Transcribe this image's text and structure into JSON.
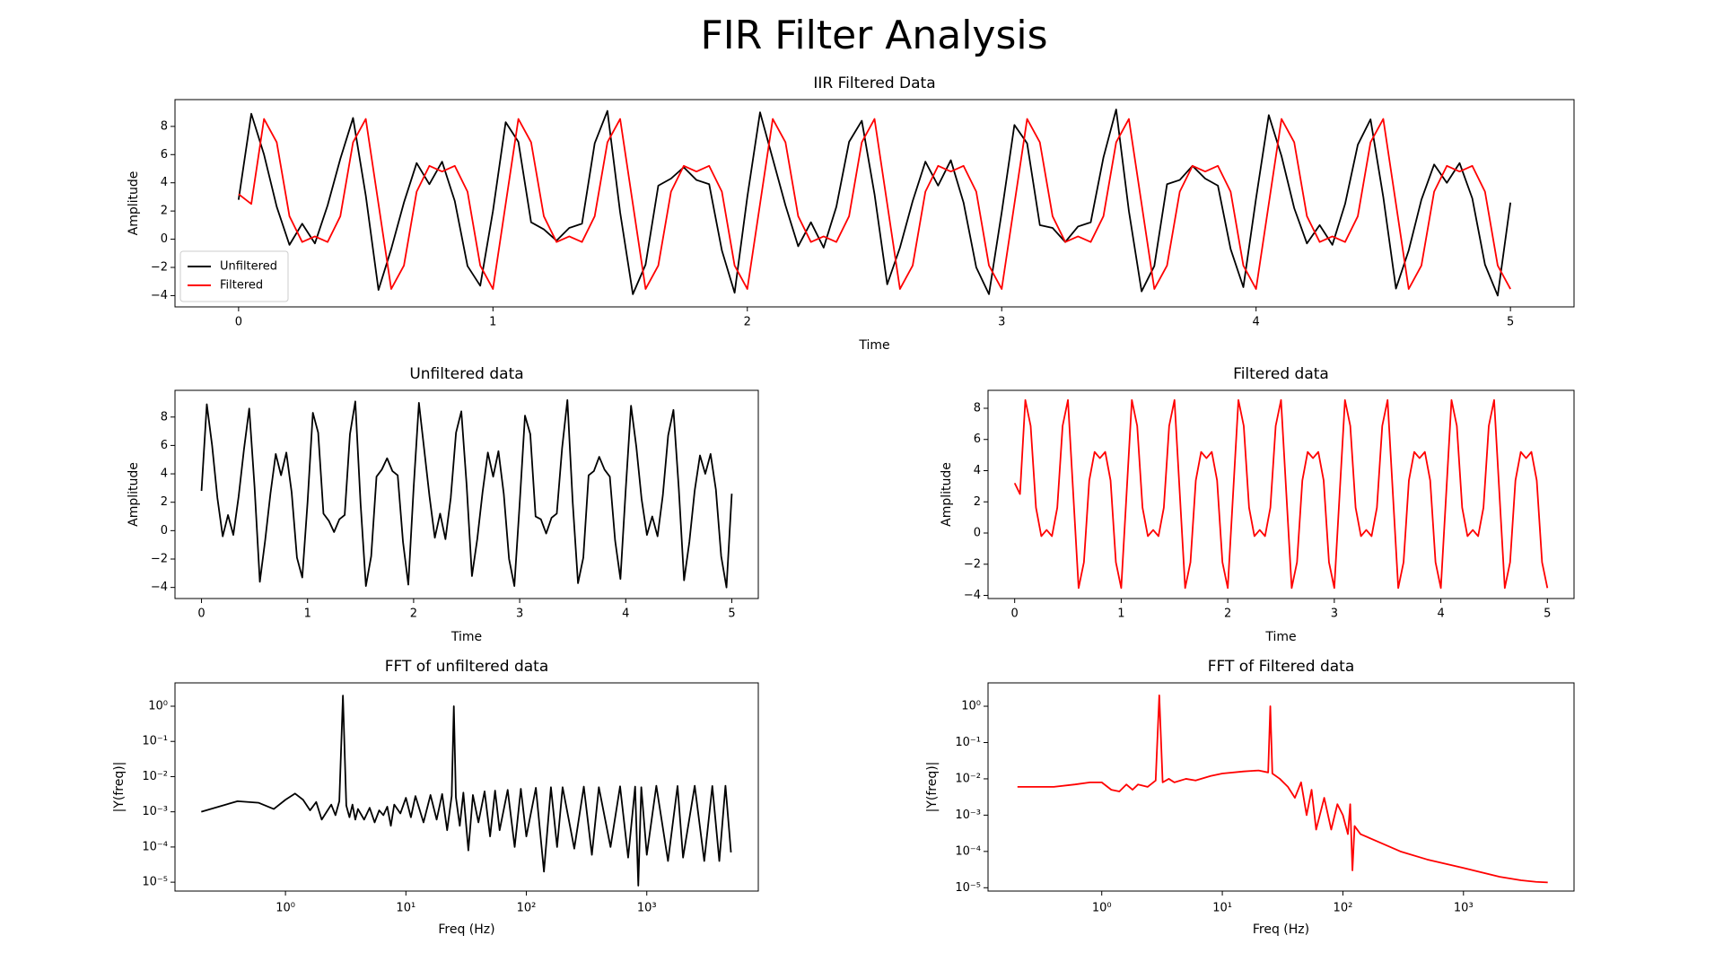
{
  "figure_title": "FIR Filter Analysis",
  "chart_data": [
    {
      "type": "line",
      "title": "IIR Filtered Data",
      "x_label": "Time",
      "y_label": "Amplitude",
      "legend": "lower left",
      "xlim": [
        -0.25,
        5.25
      ],
      "ylim": [
        -4.8,
        9.9
      ],
      "xticks": [
        0,
        1,
        2,
        3,
        4,
        5
      ],
      "yticks": [
        {
          "value": -4,
          "label": "−4"
        },
        {
          "value": -2,
          "label": "−2"
        },
        0,
        2,
        4,
        6,
        8
      ],
      "x": [
        0,
        0.05,
        0.1,
        0.15,
        0.2,
        0.25,
        0.3,
        0.35,
        0.4,
        0.45,
        0.5,
        0.55,
        0.6,
        0.65,
        0.7,
        0.75,
        0.8,
        0.85,
        0.9,
        0.95,
        1,
        1.05,
        1.1,
        1.15,
        1.2,
        1.25,
        1.3,
        1.35,
        1.4,
        1.45,
        1.5,
        1.55,
        1.6,
        1.65,
        1.7,
        1.75,
        1.8,
        1.85,
        1.9,
        1.95,
        2,
        2.05,
        2.1,
        2.15,
        2.2,
        2.25,
        2.3,
        2.35,
        2.4,
        2.45,
        2.5,
        2.55,
        2.6,
        2.65,
        2.7,
        2.75,
        2.8,
        2.85,
        2.9,
        2.95,
        3,
        3.05,
        3.1,
        3.15,
        3.2,
        3.25,
        3.3,
        3.35,
        3.4,
        3.45,
        3.5,
        3.55,
        3.6,
        3.65,
        3.7,
        3.75,
        3.8,
        3.85,
        3.9,
        3.95,
        4,
        4.05,
        4.1,
        4.15,
        4.2,
        4.25,
        4.3,
        4.35,
        4.4,
        4.45,
        4.5,
        4.55,
        4.6,
        4.65,
        4.7,
        4.75,
        4.8,
        4.85,
        4.9,
        4.95,
        5
      ],
      "series": [
        {
          "name": "Unfiltered",
          "color": "#000000",
          "values": [
            2.8,
            8.9,
            6.0,
            2.3,
            -0.4,
            1.1,
            -0.3,
            2.4,
            5.7,
            8.6,
            3.1,
            -3.6,
            -0.7,
            2.6,
            5.4,
            3.9,
            5.5,
            2.7,
            -1.9,
            -3.3,
            2.0,
            8.3,
            6.9,
            1.2,
            0.7,
            -0.1,
            0.8,
            1.1,
            6.8,
            9.1,
            1.9,
            -3.9,
            -1.8,
            3.8,
            4.3,
            5.1,
            4.2,
            3.9,
            -0.8,
            -3.8,
            3.0,
            9.0,
            5.7,
            2.4,
            -0.5,
            1.2,
            -0.6,
            2.3,
            6.9,
            8.4,
            3.2,
            -3.2,
            -0.6,
            2.7,
            5.5,
            3.8,
            5.6,
            2.6,
            -2.0,
            -3.9,
            1.9,
            8.1,
            6.8,
            1.0,
            0.8,
            -0.2,
            0.9,
            1.2,
            5.8,
            9.2,
            2.0,
            -3.7,
            -1.9,
            3.9,
            4.2,
            5.2,
            4.3,
            3.8,
            -0.7,
            -3.4,
            2.9,
            8.8,
            5.9,
            2.2,
            -0.3,
            1.0,
            -0.4,
            2.5,
            6.7,
            8.5,
            3.0,
            -3.5,
            -0.8,
            2.8,
            5.3,
            4.0,
            5.4,
            2.9,
            -1.8,
            -4.0,
            2.6
          ]
        },
        {
          "name": "Filtered",
          "color": "#ff0000",
          "values": [
            3.2,
            2.5,
            8.53,
            6.87,
            1.63,
            -0.2,
            0.2,
            -0.2,
            1.63,
            6.87,
            8.53,
            2.5,
            -3.53,
            -1.87,
            3.37,
            5.2,
            4.8,
            5.2,
            3.37,
            -1.87,
            -3.53,
            2.5,
            8.53,
            6.87,
            1.63,
            -0.2,
            0.2,
            -0.2,
            1.63,
            6.87,
            8.53,
            2.5,
            -3.53,
            -1.87,
            3.37,
            5.2,
            4.8,
            5.2,
            3.37,
            -1.87,
            -3.53,
            2.5,
            8.53,
            6.87,
            1.63,
            -0.2,
            0.2,
            -0.2,
            1.63,
            6.87,
            8.53,
            2.5,
            -3.53,
            -1.87,
            3.37,
            5.2,
            4.8,
            5.2,
            3.37,
            -1.87,
            -3.53,
            2.5,
            8.53,
            6.87,
            1.63,
            -0.2,
            0.2,
            -0.2,
            1.63,
            6.87,
            8.53,
            2.5,
            -3.53,
            -1.87,
            3.37,
            5.2,
            4.8,
            5.2,
            3.37,
            -1.87,
            -3.53,
            2.5,
            8.53,
            6.87,
            1.63,
            -0.2,
            0.2,
            -0.2,
            1.63,
            6.87,
            8.53,
            2.5,
            -3.53,
            -1.87,
            3.37,
            5.2,
            4.8,
            5.2,
            3.37,
            -1.87,
            -3.53
          ]
        }
      ]
    },
    {
      "type": "line",
      "title": "Unfiltered data",
      "x_label": "Time",
      "y_label": "Amplitude",
      "xlim": [
        -0.25,
        5.25
      ],
      "ylim": [
        -4.78,
        9.88
      ],
      "xticks": [
        0,
        1,
        2,
        3,
        4,
        5
      ],
      "yticks": [
        {
          "value": -4,
          "label": "−4"
        },
        {
          "value": -2,
          "label": "−2"
        },
        0,
        2,
        4,
        6,
        8
      ],
      "x": [
        0,
        0.05,
        0.1,
        0.15,
        0.2,
        0.25,
        0.3,
        0.35,
        0.4,
        0.45,
        0.5,
        0.55,
        0.6,
        0.65,
        0.7,
        0.75,
        0.8,
        0.85,
        0.9,
        0.95,
        1,
        1.05,
        1.1,
        1.15,
        1.2,
        1.25,
        1.3,
        1.35,
        1.4,
        1.45,
        1.5,
        1.55,
        1.6,
        1.65,
        1.7,
        1.75,
        1.8,
        1.85,
        1.9,
        1.95,
        2,
        2.05,
        2.1,
        2.15,
        2.2,
        2.25,
        2.3,
        2.35,
        2.4,
        2.45,
        2.5,
        2.55,
        2.6,
        2.65,
        2.7,
        2.75,
        2.8,
        2.85,
        2.9,
        2.95,
        3,
        3.05,
        3.1,
        3.15,
        3.2,
        3.25,
        3.3,
        3.35,
        3.4,
        3.45,
        3.5,
        3.55,
        3.6,
        3.65,
        3.7,
        3.75,
        3.8,
        3.85,
        3.9,
        3.95,
        4,
        4.05,
        4.1,
        4.15,
        4.2,
        4.25,
        4.3,
        4.35,
        4.4,
        4.45,
        4.5,
        4.55,
        4.6,
        4.65,
        4.7,
        4.75,
        4.8,
        4.85,
        4.9,
        4.95,
        5
      ],
      "series": [
        {
          "color": "#000000",
          "values": [
            2.8,
            8.9,
            6.0,
            2.3,
            -0.4,
            1.1,
            -0.3,
            2.4,
            5.7,
            8.6,
            3.1,
            -3.6,
            -0.7,
            2.6,
            5.4,
            3.9,
            5.5,
            2.7,
            -1.9,
            -3.3,
            2.0,
            8.3,
            6.9,
            1.2,
            0.7,
            -0.1,
            0.8,
            1.1,
            6.8,
            9.1,
            1.9,
            -3.9,
            -1.8,
            3.8,
            4.3,
            5.1,
            4.2,
            3.9,
            -0.8,
            -3.8,
            3.0,
            9.0,
            5.7,
            2.4,
            -0.5,
            1.2,
            -0.6,
            2.3,
            6.9,
            8.4,
            3.2,
            -3.2,
            -0.6,
            2.7,
            5.5,
            3.8,
            5.6,
            2.6,
            -2.0,
            -3.9,
            1.9,
            8.1,
            6.8,
            1.0,
            0.8,
            -0.2,
            0.9,
            1.2,
            5.8,
            9.2,
            2.0,
            -3.7,
            -1.9,
            3.9,
            4.2,
            5.2,
            4.3,
            3.8,
            -0.7,
            -3.4,
            2.9,
            8.8,
            5.9,
            2.2,
            -0.3,
            1.0,
            -0.4,
            2.5,
            6.7,
            8.5,
            3.0,
            -3.5,
            -0.8,
            2.8,
            5.3,
            4.0,
            5.4,
            2.9,
            -1.8,
            -4.0,
            2.6
          ]
        }
      ]
    },
    {
      "type": "line",
      "title": "Filtered data",
      "x_label": "Time",
      "y_label": "Amplitude",
      "xlim": [
        -0.25,
        5.25
      ],
      "ylim": [
        -4.2,
        9.15
      ],
      "xticks": [
        0,
        1,
        2,
        3,
        4,
        5
      ],
      "yticks": [
        {
          "value": -4,
          "label": "−4"
        },
        {
          "value": -2,
          "label": "−2"
        },
        0,
        2,
        4,
        6,
        8
      ],
      "x": [
        0,
        0.05,
        0.1,
        0.15,
        0.2,
        0.25,
        0.3,
        0.35,
        0.4,
        0.45,
        0.5,
        0.55,
        0.6,
        0.65,
        0.7,
        0.75,
        0.8,
        0.85,
        0.9,
        0.95,
        1,
        1.05,
        1.1,
        1.15,
        1.2,
        1.25,
        1.3,
        1.35,
        1.4,
        1.45,
        1.5,
        1.55,
        1.6,
        1.65,
        1.7,
        1.75,
        1.8,
        1.85,
        1.9,
        1.95,
        2,
        2.05,
        2.1,
        2.15,
        2.2,
        2.25,
        2.3,
        2.35,
        2.4,
        2.45,
        2.5,
        2.55,
        2.6,
        2.65,
        2.7,
        2.75,
        2.8,
        2.85,
        2.9,
        2.95,
        3,
        3.05,
        3.1,
        3.15,
        3.2,
        3.25,
        3.3,
        3.35,
        3.4,
        3.45,
        3.5,
        3.55,
        3.6,
        3.65,
        3.7,
        3.75,
        3.8,
        3.85,
        3.9,
        3.95,
        4,
        4.05,
        4.1,
        4.15,
        4.2,
        4.25,
        4.3,
        4.35,
        4.4,
        4.45,
        4.5,
        4.55,
        4.6,
        4.65,
        4.7,
        4.75,
        4.8,
        4.85,
        4.9,
        4.95,
        5
      ],
      "series": [
        {
          "color": "#ff0000",
          "values": [
            3.2,
            2.5,
            8.53,
            6.87,
            1.63,
            -0.2,
            0.2,
            -0.2,
            1.63,
            6.87,
            8.53,
            2.5,
            -3.53,
            -1.87,
            3.37,
            5.2,
            4.8,
            5.2,
            3.37,
            -1.87,
            -3.53,
            2.5,
            8.53,
            6.87,
            1.63,
            -0.2,
            0.2,
            -0.2,
            1.63,
            6.87,
            8.53,
            2.5,
            -3.53,
            -1.87,
            3.37,
            5.2,
            4.8,
            5.2,
            3.37,
            -1.87,
            -3.53,
            2.5,
            8.53,
            6.87,
            1.63,
            -0.2,
            0.2,
            -0.2,
            1.63,
            6.87,
            8.53,
            2.5,
            -3.53,
            -1.87,
            3.37,
            5.2,
            4.8,
            5.2,
            3.37,
            -1.87,
            -3.53,
            2.5,
            8.53,
            6.87,
            1.63,
            -0.2,
            0.2,
            -0.2,
            1.63,
            6.87,
            8.53,
            2.5,
            -3.53,
            -1.87,
            3.37,
            5.2,
            4.8,
            5.2,
            3.37,
            -1.87,
            -3.53,
            2.5,
            8.53,
            6.87,
            1.63,
            -0.2,
            0.2,
            -0.2,
            1.63,
            6.87,
            8.53,
            2.5,
            -3.53,
            -1.87,
            3.37,
            5.2,
            4.8,
            5.2,
            3.37,
            -1.87,
            -3.53
          ]
        }
      ]
    },
    {
      "type": "line",
      "title": "FFT of unfiltered data",
      "x_label": "Freq (Hz)",
      "y_label": "|Y(freq)|",
      "xscale": "log",
      "yscale": "log",
      "xlim": [
        0.121,
        8430
      ],
      "ylim": [
        5.6e-06,
        4.6
      ],
      "xticks": [
        {
          "value": 1,
          "label": "10⁰"
        },
        {
          "value": 10,
          "label": "10¹"
        },
        {
          "value": 100,
          "label": "10²"
        },
        {
          "value": 1000,
          "label": "10³"
        }
      ],
      "yticks": [
        {
          "value": 1e-05,
          "label": "10⁻⁵"
        },
        {
          "value": 0.0001,
          "label": "10⁻⁴"
        },
        {
          "value": 0.001,
          "label": "10⁻³"
        },
        {
          "value": 0.01,
          "label": "10⁻²"
        },
        {
          "value": 0.1,
          "label": "10⁻¹"
        },
        {
          "value": 1,
          "label": "10⁰"
        }
      ],
      "x": [
        0.2,
        0.4,
        0.6,
        0.8,
        1.0,
        1.2,
        1.4,
        1.6,
        1.8,
        2.0,
        2.2,
        2.4,
        2.6,
        2.8,
        3.0,
        3.2,
        3.4,
        3.6,
        3.8,
        4.0,
        4.5,
        5,
        5.5,
        6,
        6.5,
        7,
        7.5,
        8,
        9,
        10,
        11,
        12,
        14,
        16,
        18,
        20,
        22,
        24,
        25,
        26,
        28,
        30,
        33,
        36,
        40,
        45,
        50,
        55,
        60,
        70,
        80,
        90,
        100,
        120,
        140,
        160,
        180,
        200,
        250,
        300,
        350,
        400,
        500,
        600,
        700,
        800,
        850,
        900,
        1000,
        1200,
        1500,
        1800,
        2000,
        2500,
        3000,
        3500,
        4000,
        4500,
        5000
      ],
      "series": [
        {
          "color": "#000000",
          "values": [
            0.001,
            0.002,
            0.0018,
            0.0012,
            0.0022,
            0.0033,
            0.0022,
            0.0011,
            0.0019,
            0.0006,
            0.001,
            0.0016,
            0.0008,
            0.002,
            2.0,
            0.0015,
            0.0007,
            0.0016,
            0.0006,
            0.0012,
            0.0006,
            0.0013,
            0.0005,
            0.0011,
            0.0008,
            0.0014,
            0.0004,
            0.0016,
            0.0009,
            0.0025,
            0.0007,
            0.0028,
            0.0005,
            0.003,
            0.0006,
            0.0032,
            0.0003,
            0.0028,
            1.0,
            0.0026,
            0.0004,
            0.0035,
            8e-05,
            0.003,
            0.0005,
            0.0038,
            0.0002,
            0.004,
            0.0003,
            0.0042,
            0.0001,
            0.0045,
            0.0002,
            0.0048,
            2e-05,
            0.005,
            0.0001,
            0.005,
            9e-05,
            0.0052,
            6e-05,
            0.005,
            0.0001,
            0.0053,
            5e-05,
            0.0052,
            8e-06,
            0.005,
            6e-05,
            0.0055,
            4e-05,
            0.0054,
            5e-05,
            0.0055,
            4e-05,
            0.0054,
            4e-05,
            0.0055,
            7e-05
          ]
        }
      ]
    },
    {
      "type": "line",
      "title": "FFT of Filtered data",
      "x_label": "Freq (Hz)",
      "y_label": "|Y(freq)|",
      "xscale": "log",
      "yscale": "log",
      "xlim": [
        0.114,
        8260
      ],
      "ylim": [
        8.1e-06,
        4.4
      ],
      "xticks": [
        {
          "value": 1,
          "label": "10⁰"
        },
        {
          "value": 10,
          "label": "10¹"
        },
        {
          "value": 100,
          "label": "10²"
        },
        {
          "value": 1000,
          "label": "10³"
        }
      ],
      "yticks": [
        {
          "value": 1e-05,
          "label": "10⁻⁵"
        },
        {
          "value": 0.0001,
          "label": "10⁻⁴"
        },
        {
          "value": 0.001,
          "label": "10⁻³"
        },
        {
          "value": 0.01,
          "label": "10⁻²"
        },
        {
          "value": 0.1,
          "label": "10⁻¹"
        },
        {
          "value": 1,
          "label": "10⁰"
        }
      ],
      "x": [
        0.2,
        0.4,
        0.6,
        0.8,
        1.0,
        1.2,
        1.4,
        1.6,
        1.8,
        2.0,
        2.4,
        2.8,
        3.0,
        3.2,
        3.6,
        4,
        5,
        6,
        8,
        10,
        15,
        20,
        24,
        25,
        26,
        30,
        35,
        40,
        45,
        50,
        55,
        60,
        70,
        80,
        90,
        100,
        110,
        115,
        120,
        125,
        140,
        200,
        300,
        500,
        1000,
        2000,
        3000,
        4000,
        5000
      ],
      "series": [
        {
          "color": "#ff0000",
          "values": [
            0.006,
            0.006,
            0.007,
            0.008,
            0.008,
            0.005,
            0.0045,
            0.007,
            0.005,
            0.007,
            0.006,
            0.009,
            2.0,
            0.008,
            0.01,
            0.008,
            0.01,
            0.009,
            0.012,
            0.014,
            0.016,
            0.017,
            0.015,
            1.0,
            0.014,
            0.01,
            0.006,
            0.003,
            0.008,
            0.001,
            0.005,
            0.0004,
            0.003,
            0.0004,
            0.002,
            0.001,
            0.0003,
            0.002,
            3e-05,
            0.0005,
            0.0003,
            0.00018,
            0.0001,
            6e-05,
            3.5e-05,
            2e-05,
            1.6e-05,
            1.45e-05,
            1.4e-05
          ]
        }
      ]
    }
  ]
}
